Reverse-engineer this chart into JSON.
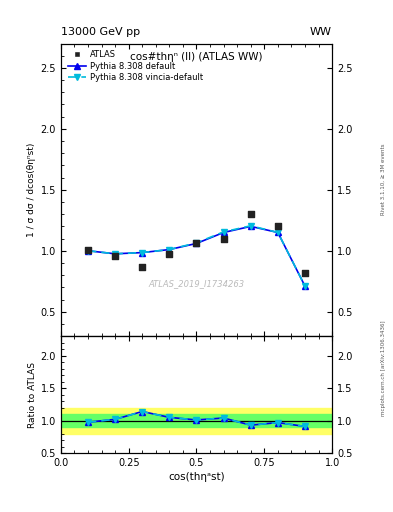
{
  "header_left": "13000 GeV pp",
  "header_right": "WW",
  "right_label_top": "Rivet 3.1.10, ≥ 3M events",
  "right_label_bottom": "mcplots.cern.ch [arXiv:1306.3436]",
  "watermark": "ATLAS_2019_I1734263",
  "title_inside": "cos#thη (ll) (ATLAS WW)",
  "ylabel_main": "1 / σ dσ / dcos(θηⁿst)",
  "ylabel_ratio": "Ratio to ATLAS",
  "xlabel": "cos(thηᵃst)",
  "x_data": [
    0.1,
    0.2,
    0.3,
    0.4,
    0.5,
    0.6,
    0.7,
    0.8,
    0.9
  ],
  "atlas_y": [
    1.005,
    0.96,
    0.865,
    0.975,
    1.06,
    1.1,
    1.3,
    1.2,
    0.82
  ],
  "pythia_default_y": [
    1.0,
    0.975,
    0.985,
    1.01,
    1.06,
    1.15,
    1.2,
    1.15,
    0.71
  ],
  "pythia_vincia_y": [
    1.0,
    0.975,
    0.985,
    1.01,
    1.065,
    1.155,
    1.205,
    1.15,
    0.71
  ],
  "ratio_default_y": [
    0.975,
    1.02,
    1.14,
    1.05,
    1.01,
    1.04,
    0.93,
    0.97,
    0.91
  ],
  "ratio_vincia_y": [
    0.975,
    1.02,
    1.14,
    1.05,
    1.01,
    1.04,
    0.93,
    0.97,
    0.91
  ],
  "atlas_color": "#222222",
  "pythia_default_color": "#0000ee",
  "pythia_vincia_color": "#00bbdd",
  "ylim_main": [
    0.3,
    2.7
  ],
  "ylim_ratio": [
    0.5,
    2.3
  ],
  "xlim": [
    0.0,
    1.0
  ],
  "band_yellow_lo": 0.8,
  "band_yellow_hi": 1.2,
  "band_green_lo": 0.9,
  "band_green_hi": 1.1,
  "yticks_main": [
    0.5,
    1.0,
    1.5,
    2.0,
    2.5
  ],
  "yticks_ratio": [
    0.5,
    1.0,
    1.5,
    2.0
  ],
  "xticks": [
    0.0,
    0.25,
    0.5,
    0.75,
    1.0
  ]
}
